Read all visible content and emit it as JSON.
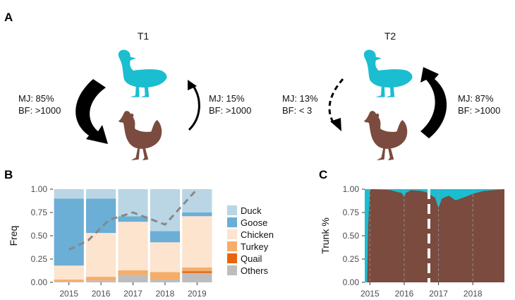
{
  "panels": {
    "a": {
      "letter": "A",
      "t1": {
        "title": "T1",
        "left_mj": "MJ: 85%",
        "left_bf": "BF: >1000",
        "right_mj": "MJ: 15%",
        "right_bf": "BF: >1000"
      },
      "t2": {
        "title": "T2",
        "left_mj": "MJ: 13%",
        "left_bf": "BF: < 3",
        "right_mj": "MJ: 87%",
        "right_bf": "BF: >1000"
      },
      "icons": [
        "duck-icon",
        "chicken-icon"
      ]
    },
    "b": {
      "letter": "B"
    },
    "c": {
      "letter": "C"
    }
  },
  "colors": {
    "duck": "#BAD6E4",
    "goose": "#6BAED6",
    "chicken": "#FDE4CF",
    "turkey": "#F5AD6A",
    "quail": "#E8650F",
    "others": "#BDBDBD",
    "duck_icon": "#1BBDD0",
    "chicken_icon": "#7A4B3E",
    "trunk_fill": "#7A4B3E",
    "trunk_top": "#1BBDD0",
    "line": "#888888"
  },
  "chart_data": [
    {
      "type": "bar",
      "stacked": true,
      "categories": [
        "2015",
        "2016",
        "2017",
        "2018",
        "2019"
      ],
      "ylabel": "Freq",
      "ylim": [
        0,
        1
      ],
      "yticks": [
        "0.00",
        "0.25",
        "0.50",
        "0.75",
        "1.00"
      ],
      "series": [
        {
          "name": "Others",
          "values": [
            0.01,
            0.02,
            0.08,
            0.03,
            0.1
          ]
        },
        {
          "name": "Quail",
          "values": [
            0.0,
            0.0,
            0.0,
            0.0,
            0.02
          ]
        },
        {
          "name": "Turkey",
          "values": [
            0.02,
            0.04,
            0.05,
            0.08,
            0.04
          ]
        },
        {
          "name": "Chicken",
          "values": [
            0.15,
            0.47,
            0.52,
            0.32,
            0.55
          ]
        },
        {
          "name": "Goose",
          "values": [
            0.72,
            0.37,
            0.06,
            0.12,
            0.04
          ]
        },
        {
          "name": "Duck",
          "values": [
            0.1,
            0.1,
            0.29,
            0.45,
            0.25
          ]
        }
      ],
      "line": {
        "style": "dashed",
        "x": [
          0,
          0.6,
          1.25,
          2.0,
          3.0,
          4.0
        ],
        "y": [
          0.35,
          0.45,
          0.67,
          0.75,
          0.62,
          1.0
        ]
      },
      "legend": {
        "position": "right",
        "entries": [
          "Duck",
          "Goose",
          "Chicken",
          "Turkey",
          "Quail",
          "Others"
        ]
      }
    },
    {
      "type": "area",
      "ylabel": "Trunk %",
      "ylim": [
        0,
        1
      ],
      "xlim": [
        2014.85,
        2018.92
      ],
      "yticks": [
        "0.00",
        "0.25",
        "0.50",
        "0.75",
        "1.00"
      ],
      "xticks": [
        "2015",
        "2016",
        "2017",
        "2018"
      ],
      "vline_dashed": 2016.72,
      "series": [
        {
          "x": [
            2014.85,
            2014.9,
            2014.92,
            2014.95,
            2015.0,
            2015.05,
            2015.1,
            2015.3,
            2015.6,
            2015.8,
            2015.92,
            2016.0,
            2016.05,
            2016.2,
            2016.5,
            2016.7,
            2016.8,
            2016.9,
            2016.95,
            2017.0,
            2017.1,
            2017.3,
            2017.5,
            2017.8,
            2018.0,
            2018.3,
            2018.6,
            2018.92
          ],
          "y": [
            0.0,
            0.0,
            0.0,
            0.6,
            0.99,
            1.0,
            1.0,
            0.995,
            0.99,
            0.97,
            0.96,
            0.92,
            0.96,
            0.99,
            0.98,
            0.96,
            0.93,
            0.91,
            0.85,
            0.8,
            0.9,
            0.93,
            0.88,
            0.92,
            0.95,
            0.98,
            0.99,
            1.0
          ]
        }
      ]
    }
  ]
}
